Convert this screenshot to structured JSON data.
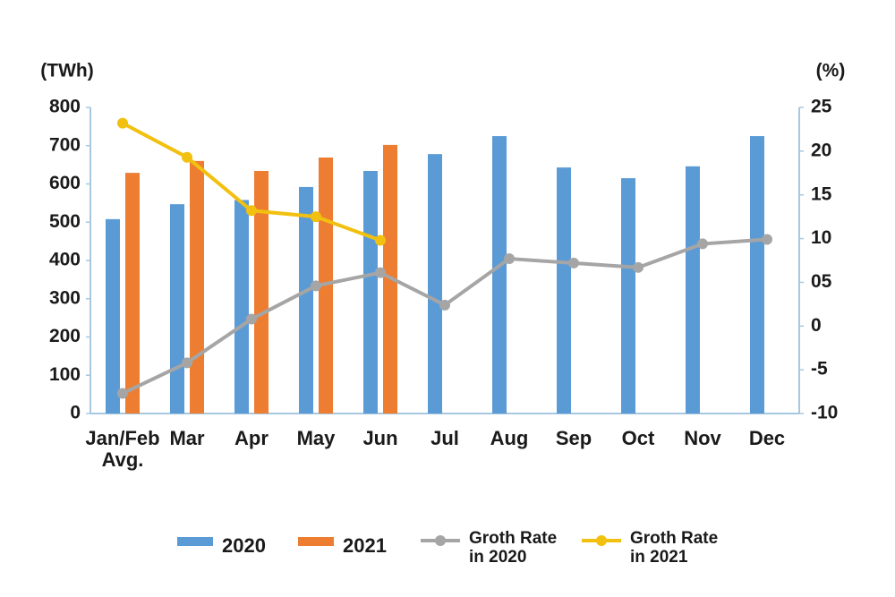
{
  "chart_data": {
    "type": "bar-line",
    "y_label": "(TWh)",
    "y2_label": "(%)",
    "categories": [
      "Jan/Feb\nAvg.",
      "Mar",
      "Apr",
      "May",
      "Jun",
      "Jul",
      "Aug",
      "Sep",
      "Oct",
      "Nov",
      "Dec"
    ],
    "series": [
      {
        "name": "2020",
        "type": "bar",
        "color": "#5b9bd5",
        "values": [
          508,
          547,
          558,
          592,
          634,
          678,
          725,
          643,
          615,
          646,
          725
        ]
      },
      {
        "name": "2021",
        "type": "bar",
        "color": "#ed7d31",
        "values": [
          629,
          660,
          634,
          669,
          702,
          null,
          null,
          null,
          null,
          null,
          null
        ]
      },
      {
        "name": "Groth Rate\nin 2020",
        "type": "line",
        "axis": "y2",
        "color": "#a5a5a5",
        "values": [
          -7.7,
          -4.2,
          0.8,
          4.6,
          6.1,
          2.4,
          7.7,
          7.2,
          6.7,
          9.4,
          9.9
        ]
      },
      {
        "name": "Groth Rate\nin 2021",
        "type": "line",
        "axis": "y2",
        "color": "#f2c00e",
        "values": [
          23.2,
          19.3,
          13.2,
          12.5,
          9.8,
          null,
          null,
          null,
          null,
          null,
          null
        ]
      }
    ],
    "ylim": [
      0,
      800
    ],
    "yticks": [
      0,
      100,
      200,
      300,
      400,
      500,
      600,
      700,
      800
    ],
    "y2lim": [
      -10,
      25
    ],
    "y2ticks": [
      -10,
      -5,
      0,
      {
        "value": 5,
        "label": "05"
      },
      10,
      15,
      20,
      25
    ],
    "legend": "bottom"
  }
}
